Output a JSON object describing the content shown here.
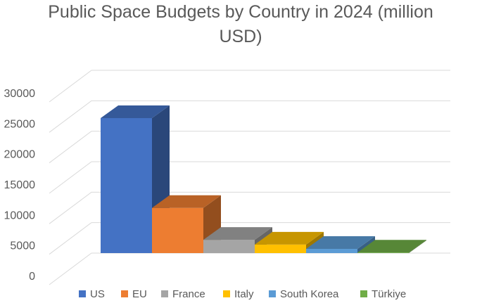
{
  "chart_data": {
    "type": "bar",
    "style": "3d-column",
    "title_lines": [
      "Public Space Budgets by Country in 2024 (million",
      "USD)"
    ],
    "categories": [
      "US",
      "EU",
      "France",
      "Italy",
      "South Korea",
      "Türkiye"
    ],
    "values": [
      25400,
      8500,
      2500,
      1600,
      800,
      100
    ],
    "colors": [
      "#4472C4",
      "#ED7D31",
      "#A5A5A5",
      "#FFC000",
      "#5B9BD5",
      "#70AD47"
    ],
    "ylim": [
      0,
      30000
    ],
    "yticks": [
      0,
      5000,
      10000,
      15000,
      20000,
      25000,
      30000
    ],
    "xlabel": "",
    "ylabel": "",
    "grid": true,
    "legend": {
      "position": "bottom",
      "entries": [
        "US",
        "EU",
        "France",
        "Italy",
        "South Korea",
        "Türkiye"
      ]
    }
  }
}
